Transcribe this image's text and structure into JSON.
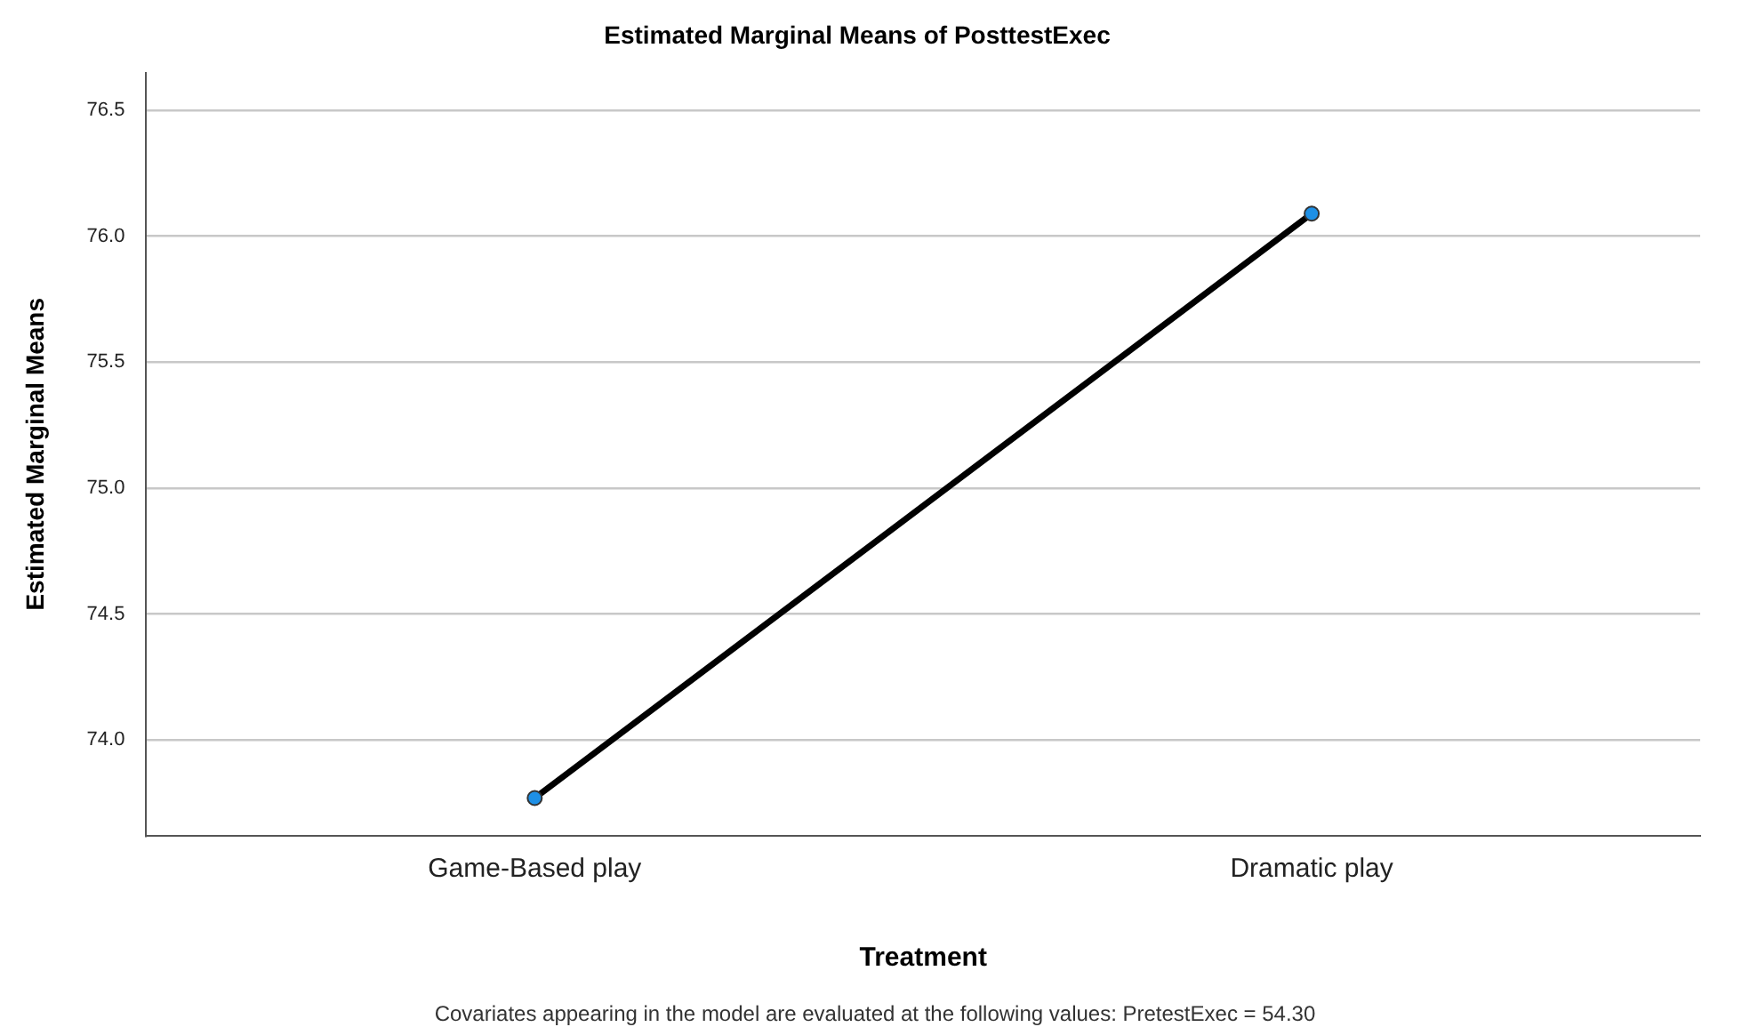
{
  "chart_data": {
    "type": "line",
    "title": "Estimated Marginal Means of PosttestExec",
    "xlabel": "Treatment",
    "ylabel": "Estimated Marginal Means",
    "categories": [
      "Game-Based play",
      "Dramatic play"
    ],
    "series": [
      {
        "color": "#000000",
        "values": [
          73.77,
          76.09
        ]
      }
    ],
    "ylim": [
      73.62,
      76.65
    ],
    "yticks": [
      {
        "value": 74,
        "label": "74.0"
      },
      {
        "value": 74.5,
        "label": "74.5"
      },
      {
        "value": 75,
        "label": "75.0"
      },
      {
        "value": 75.5,
        "label": "75.5"
      },
      {
        "value": 76,
        "label": "76.0"
      },
      {
        "value": 76.5,
        "label": "76.5"
      }
    ],
    "grid": "y",
    "legend": false,
    "marker": "circle",
    "line_style": "solid",
    "annotations": [
      "Covariates appearing in the model are evaluated at the following values: PretestExec = 54.30"
    ]
  }
}
